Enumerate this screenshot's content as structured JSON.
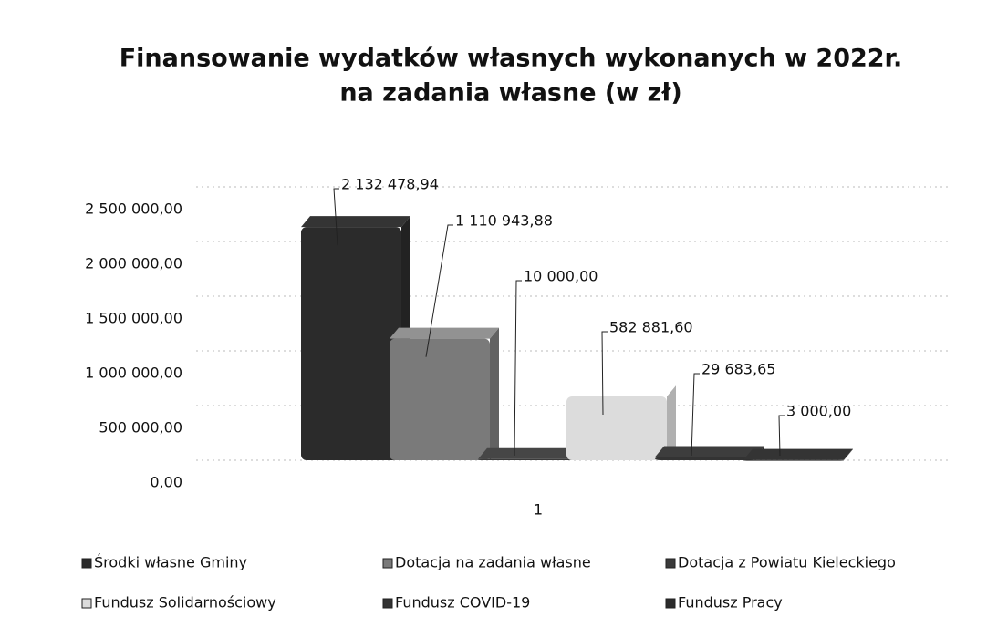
{
  "chart_data": {
    "type": "bar3d",
    "title": [
      "Finansowanie wydatków własnych wykonanych w 2022r.",
      "na zadania własne (w zł)"
    ],
    "categories": [
      "1"
    ],
    "series": [
      {
        "name": "Środki własne Gminy",
        "color": "#2b2b2b",
        "values": [
          2132478.94
        ],
        "value_labels": [
          "2 132 478,94"
        ]
      },
      {
        "name": "Dotacja na zadania własne",
        "color": "#7a7a7a",
        "values": [
          1110943.88
        ],
        "value_labels": [
          "1 110 943,88"
        ]
      },
      {
        "name": "Dotacja z Powiatu Kieleckiego",
        "color": "#3a3a3a",
        "values": [
          10000
        ],
        "value_labels": [
          "10 000,00"
        ]
      },
      {
        "name": "Fundusz Solidarnościowy",
        "color": "#dcdcdc",
        "values": [
          582881.6
        ],
        "value_labels": [
          "582 881,60"
        ]
      },
      {
        "name": "Fundusz COVID-19",
        "color": "#333333",
        "values": [
          29683.65
        ],
        "value_labels": [
          "29 683,65"
        ]
      },
      {
        "name": "Fundusz Pracy",
        "color": "#2b2b2b",
        "values": [
          3000
        ],
        "value_labels": [
          "3 000,00"
        ]
      }
    ],
    "ylim": [
      0,
      2500000
    ],
    "yticks": [
      {
        "value": 0,
        "label": "0,00"
      },
      {
        "value": 500000,
        "label": "500 000,00"
      },
      {
        "value": 1000000,
        "label": "1 000 000,00"
      },
      {
        "value": 1500000,
        "label": "1 500 000,00"
      },
      {
        "value": 2000000,
        "label": "2 000 000,00"
      },
      {
        "value": 2500000,
        "label": "2 500 000,00"
      }
    ],
    "grid": true
  }
}
